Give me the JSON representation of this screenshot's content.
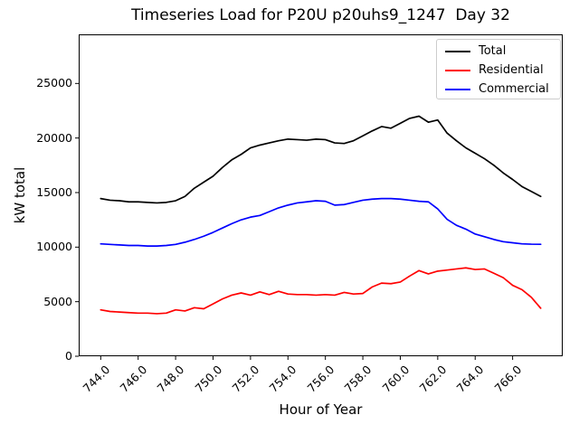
{
  "chart_data": {
    "type": "line",
    "title": "Timeseries Load for P20U p20uhs9_1247  Day 32",
    "xlabel": "Hour of Year",
    "ylabel": "kW total",
    "grid": false,
    "background": "#ffffff",
    "axis_color": "#000000",
    "line_width": 1.7,
    "xlim": [
      742.825,
      768.675
    ],
    "ylim": [
      0,
      29500
    ],
    "xticks": [
      744,
      746,
      748,
      750,
      752,
      754,
      756,
      758,
      760,
      762,
      764,
      766
    ],
    "xtick_labels": [
      "744.0",
      "746.0",
      "748.0",
      "750.0",
      "752.0",
      "754.0",
      "756.0",
      "758.0",
      "760.0",
      "762.0",
      "764.0",
      "766.0"
    ],
    "xtick_rotation": 45,
    "yticks": [
      0,
      5000,
      10000,
      15000,
      20000,
      25000
    ],
    "ytick_labels": [
      "0",
      "5000",
      "10000",
      "15000",
      "20000",
      "25000"
    ],
    "legend": {
      "position": "upper right",
      "border_color": "#cccccc"
    },
    "x": [
      744.0,
      744.5,
      745.0,
      745.5,
      746.0,
      746.5,
      747.0,
      747.5,
      748.0,
      748.5,
      749.0,
      749.5,
      750.0,
      750.5,
      751.0,
      751.5,
      752.0,
      752.5,
      753.0,
      753.5,
      754.0,
      754.5,
      755.0,
      755.5,
      756.0,
      756.5,
      757.0,
      757.5,
      758.0,
      758.5,
      759.0,
      759.5,
      760.0,
      760.5,
      761.0,
      761.5,
      762.0,
      762.5,
      763.0,
      763.5,
      764.0,
      764.5,
      765.0,
      765.5,
      766.0,
      766.5,
      767.0,
      767.5
    ],
    "series": [
      {
        "name": "Total",
        "color": "#000000",
        "values": [
          14450,
          14300,
          14250,
          14150,
          14150,
          14100,
          14050,
          14100,
          14250,
          14650,
          15400,
          15950,
          16500,
          17300,
          18000,
          18500,
          19100,
          19350,
          19550,
          19750,
          19900,
          19850,
          19800,
          19900,
          19850,
          19550,
          19500,
          19750,
          20200,
          20650,
          21050,
          20900,
          21350,
          21800,
          22000,
          21450,
          21650,
          20450,
          19750,
          19100,
          18600,
          18100,
          17500,
          16800,
          16200,
          15550,
          15100,
          14650
        ]
      },
      {
        "name": "Residential",
        "color": "#ff0000",
        "values": [
          4250,
          4100,
          4050,
          4000,
          3950,
          3950,
          3900,
          3950,
          4250,
          4150,
          4450,
          4350,
          4800,
          5250,
          5600,
          5800,
          5600,
          5900,
          5650,
          5950,
          5700,
          5650,
          5650,
          5600,
          5650,
          5600,
          5850,
          5700,
          5750,
          6350,
          6700,
          6650,
          6800,
          7350,
          7850,
          7550,
          7800,
          7900,
          8000,
          8100,
          7950,
          8000,
          7600,
          7200,
          6500,
          6100,
          5400,
          4400
        ]
      },
      {
        "name": "Commercial",
        "color": "#0000ff",
        "values": [
          10300,
          10250,
          10200,
          10150,
          10150,
          10100,
          10100,
          10150,
          10250,
          10450,
          10700,
          11000,
          11350,
          11750,
          12150,
          12500,
          12750,
          12900,
          13250,
          13600,
          13850,
          14050,
          14150,
          14250,
          14200,
          13850,
          13900,
          14100,
          14300,
          14400,
          14450,
          14450,
          14400,
          14300,
          14200,
          14150,
          13500,
          12550,
          12000,
          11650,
          11200,
          10950,
          10700,
          10500,
          10400,
          10300,
          10270,
          10260
        ]
      }
    ]
  }
}
